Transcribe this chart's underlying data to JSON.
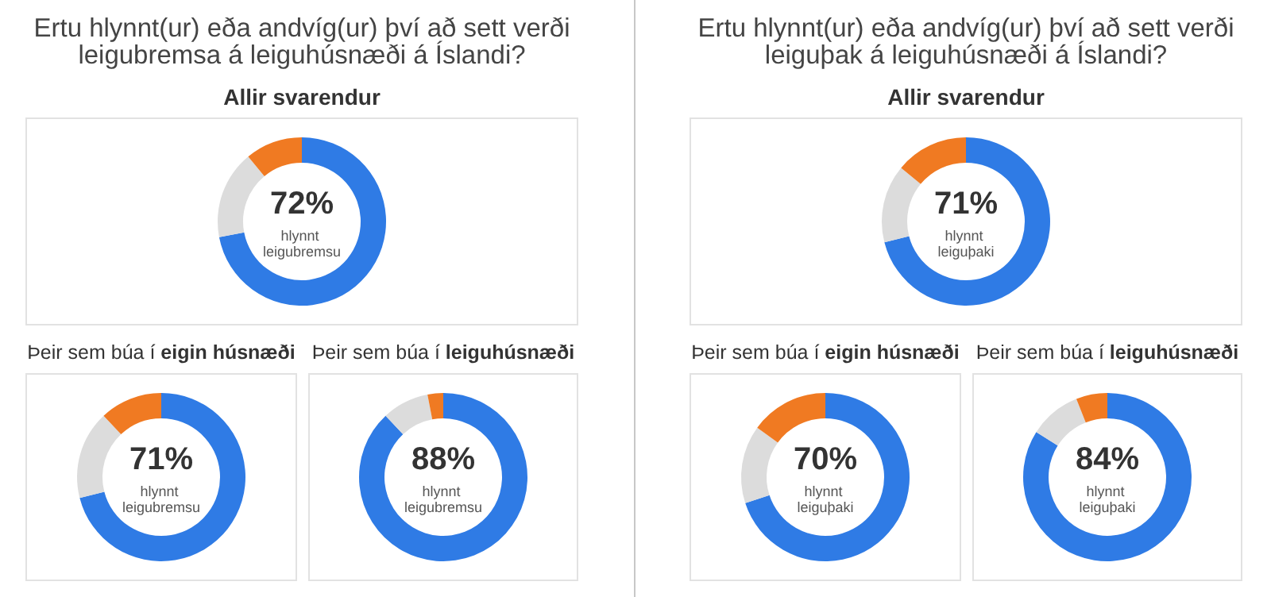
{
  "chart_data": [
    {
      "type": "donut",
      "annotations": [
        "Ertu hlynnt(ur) eða andvíg(ur) því að sett verði\nleigubremsa á leiguhúsnæði á Íslandi?"
      ],
      "title": "Allir svarendur",
      "categories": [
        "hlynnt leigubremsu",
        null,
        null
      ],
      "values": [
        72,
        17,
        11
      ],
      "colors": [
        "#2f7be5",
        "#dcdcdc",
        "#f07a22"
      ],
      "value_labels": [
        "72%",
        null,
        null
      ]
    },
    {
      "type": "donut",
      "subtitle": "Þeir sem búa í",
      "title": "eigin húsnæði",
      "categories": [
        "hlynnt leigubremsu",
        null,
        null
      ],
      "values": [
        71,
        17,
        12
      ],
      "colors": [
        "#2f7be5",
        "#dcdcdc",
        "#f07a22"
      ],
      "value_labels": [
        "71%",
        null,
        null
      ]
    },
    {
      "type": "donut",
      "subtitle": "Þeir sem búa í",
      "title": "leiguhúsnæði",
      "categories": [
        "hlynnt leigubremsu",
        null,
        null
      ],
      "values": [
        88,
        9,
        3
      ],
      "colors": [
        "#2f7be5",
        "#dcdcdc",
        "#f07a22"
      ],
      "value_labels": [
        "88%",
        null,
        null
      ]
    },
    {
      "type": "donut",
      "annotations": [
        "Ertu hlynnt(ur) eða andvíg(ur) því að sett verði\nleiguþak á leiguhúsnæði á Íslandi?"
      ],
      "title": "Allir svarendur",
      "categories": [
        "hlynnt leiguþaki",
        null,
        null
      ],
      "values": [
        71,
        15,
        14
      ],
      "colors": [
        "#2f7be5",
        "#dcdcdc",
        "#f07a22"
      ],
      "value_labels": [
        "71%",
        null,
        null
      ]
    },
    {
      "type": "donut",
      "subtitle": "Þeir sem búa í",
      "title": "eigin húsnæði",
      "categories": [
        "hlynnt leiguþaki",
        null,
        null
      ],
      "values": [
        70,
        15,
        15
      ],
      "colors": [
        "#2f7be5",
        "#dcdcdc",
        "#f07a22"
      ],
      "value_labels": [
        "70%",
        null,
        null
      ]
    },
    {
      "type": "donut",
      "subtitle": "Þeir sem búa í",
      "title": "leiguhúsnæði",
      "categories": [
        "hlynnt leiguþaki",
        null,
        null
      ],
      "values": [
        84,
        10,
        6
      ],
      "colors": [
        "#2f7be5",
        "#dcdcdc",
        "#f07a22"
      ],
      "value_labels": [
        "84%",
        null,
        null
      ]
    }
  ]
}
